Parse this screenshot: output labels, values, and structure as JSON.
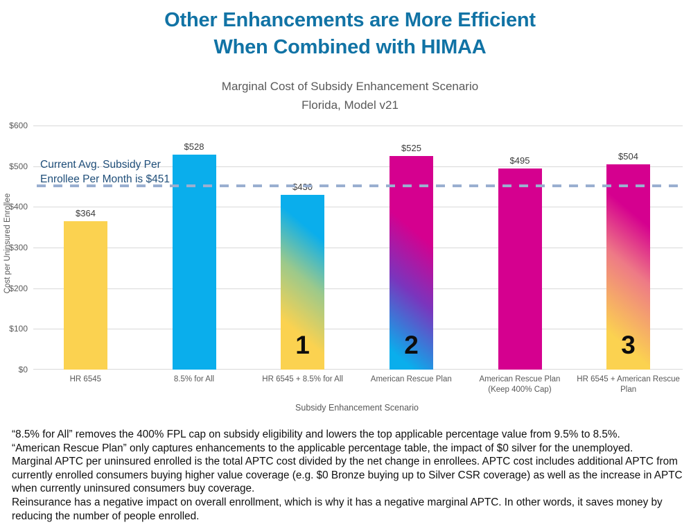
{
  "title": {
    "line1": "Other Enhancements are More Efficient",
    "line2": "When Combined with HIMAA"
  },
  "subtitle": {
    "line1": "Marginal Cost of Subsidy Enhancement Scenario",
    "line2": "Florida, Model v21"
  },
  "chart_data": {
    "type": "bar",
    "title": "Marginal Cost of Subsidy Enhancement Scenario",
    "subtitle": "Florida, Model v21",
    "categories": [
      "HR 6545",
      "8.5% for All",
      "HR 6545 + 8.5% for All",
      "American Rescue Plan",
      "American Rescue Plan (Keep 400% Cap)",
      "HR 6545 + American Rescue Plan"
    ],
    "values": [
      364,
      528,
      430,
      525,
      495,
      504
    ],
    "data_labels": [
      "$364",
      "$528",
      "$430",
      "$525",
      "$495",
      "$504"
    ],
    "bar_numbers": [
      "",
      "",
      "1",
      "2",
      "",
      "3"
    ],
    "fills": [
      {
        "color": "#FBD250"
      },
      {
        "color": "#0AAEEC"
      },
      {
        "angle": 40,
        "stops": [
          "#FBD250 24%",
          "#9CC98B 52%",
          "#0AAEEC 78%"
        ]
      },
      {
        "angle": 40,
        "stops": [
          "#0AAEEC 8%",
          "#7A35BD 38%",
          "#D5008F 64%"
        ]
      },
      {
        "color": "#D5008F"
      },
      {
        "angle": 40,
        "stops": [
          "#FBD250 16%",
          "#EE7A86 50%",
          "#D5008F 74%"
        ]
      }
    ],
    "xlabel": "Subsidy Enhancement Scenario",
    "ylabel": "Cost per Uninsured Enrollee",
    "ylim": [
      0,
      600
    ],
    "yticks": [
      "$600",
      "$500",
      "$400",
      "$300",
      "$200",
      "$100",
      "$0"
    ],
    "grid": true,
    "legend": "none",
    "reference_line": {
      "value": 451,
      "label": "Current Avg. Subsidy Per Enrollee Per Month is $451"
    }
  },
  "annotation": {
    "line1": "Current Avg. Subsidy Per",
    "line2": "Enrollee Per Month is $451"
  },
  "footnotes": [
    "“8.5% for All” removes the 400% FPL cap on subsidy eligibility and lowers the top applicable percentage value from 9.5% to 8.5%.",
    "“American Rescue Plan” only captures enhancements to the applicable percentage table, the impact of $0 silver for the unemployed.",
    "Marginal APTC per uninsured enrolled is the total APTC cost divided by the net change in enrollees. APTC cost includes additional APTC from currently enrolled consumers buying higher value coverage (e.g. $0 Bronze buying up to Silver CSR coverage) as well as the increase in APTC when currently uninsured consumers buy coverage.",
    "Reinsurance has a negative impact on overall enrollment, which is why it has a negative marginal APTC.  In other words, it saves money by reducing the number of people enrolled."
  ],
  "colors": {
    "title": "#1173A5",
    "annotation": "#1F4E79",
    "reference_dash": "#9AAFD0",
    "gridline": "#D9D9D9",
    "axis_text": "#595959",
    "bar_yellow": "#FBD250",
    "bar_cyan": "#0AAEEC",
    "bar_magenta": "#D5008F"
  }
}
